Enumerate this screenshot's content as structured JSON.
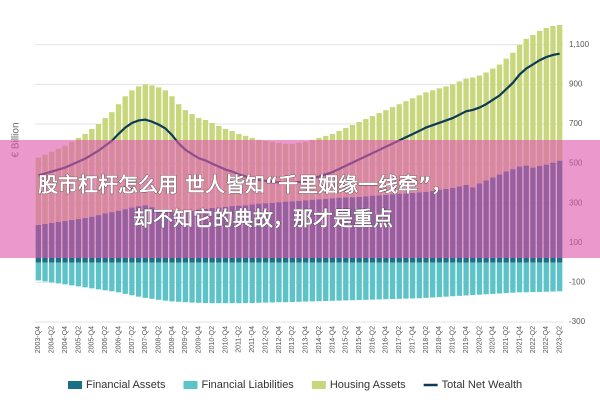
{
  "chart_data": {
    "type": "bar",
    "stacked": true,
    "y_axis_label": "€ Billion",
    "categories": [
      "2003-Q4",
      null,
      "2004-Q2",
      null,
      "2004-Q4",
      null,
      "2005-Q2",
      null,
      "2005-Q4",
      null,
      "2006-Q2",
      null,
      "2006-Q4",
      null,
      "2007-Q2",
      null,
      "2007-Q4",
      null,
      "2008-Q2",
      null,
      "2008-Q4",
      null,
      "2009-Q2",
      null,
      "2009-Q4",
      null,
      "2010-Q2",
      null,
      "2010-Q4",
      null,
      "2011-Q2",
      null,
      "2011-Q4",
      null,
      "2012-Q2",
      null,
      "2012-Q4",
      null,
      "2013-Q2",
      null,
      "2013-Q4",
      null,
      "2014-Q2",
      null,
      "2014-Q4",
      null,
      "2015-Q2",
      null,
      "2015-Q4",
      null,
      "2016-Q2",
      null,
      "2016-Q4",
      null,
      "2017-Q2",
      null,
      "2017-Q4",
      null,
      "2018-Q2",
      null,
      "2018-Q4",
      null,
      "2019-Q2",
      null,
      "2019-Q4",
      null,
      "2020-Q2",
      null,
      "2020-Q4",
      null,
      "2021-Q2",
      null,
      "2021-Q4",
      null,
      "2022-Q2",
      null,
      "2022-Q4",
      null,
      "2023-Q2"
    ],
    "series": [
      {
        "name": "Financial Assets",
        "color": "#1b6f86",
        "values": [
          190,
          195,
          200,
          205,
          210,
          215,
          220,
          225,
          232,
          240,
          248,
          255,
          262,
          270,
          278,
          285,
          290,
          280,
          270,
          262,
          255,
          250,
          255,
          262,
          268,
          272,
          276,
          278,
          282,
          286,
          288,
          290,
          294,
          298,
          300,
          302,
          305,
          308,
          310,
          312,
          315,
          318,
          320,
          322,
          325,
          328,
          330,
          330,
          332,
          335,
          338,
          340,
          342,
          345,
          348,
          350,
          352,
          355,
          358,
          362,
          368,
          372,
          378,
          385,
          392,
          380,
          400,
          415,
          430,
          445,
          460,
          472,
          485,
          490,
          480,
          488,
          495,
          505,
          515
        ]
      },
      {
        "name": "Financial Liabilities",
        "color": "#5cc3c9",
        "values": [
          -90,
          -95,
          -100,
          -105,
          -110,
          -115,
          -120,
          -125,
          -130,
          -135,
          -140,
          -145,
          -150,
          -158,
          -165,
          -172,
          -178,
          -183,
          -188,
          -192,
          -196,
          -198,
          -200,
          -202,
          -203,
          -204,
          -205,
          -205,
          -205,
          -205,
          -205,
          -204,
          -204,
          -203,
          -202,
          -201,
          -200,
          -200,
          -199,
          -198,
          -197,
          -196,
          -195,
          -194,
          -193,
          -192,
          -191,
          -190,
          -189,
          -188,
          -187,
          -186,
          -185,
          -184,
          -183,
          -182,
          -181,
          -180,
          -178,
          -176,
          -174,
          -172,
          -170,
          -168,
          -166,
          -164,
          -162,
          -160,
          -158,
          -156,
          -154,
          -152,
          -150,
          -150,
          -149,
          -148,
          -147,
          -146,
          -145
        ]
      },
      {
        "name": "Housing Assets",
        "color": "#c8d77c",
        "values": [
          340,
          350,
          360,
          370,
          380,
          395,
          410,
          425,
          443,
          460,
          482,
          505,
          538,
          570,
          592,
          605,
          610,
          615,
          615,
          608,
          585,
          550,
          515,
          488,
          462,
          448,
          429,
          412,
          393,
          379,
          362,
          350,
          336,
          322,
          315,
          308,
          300,
          292,
          290,
          293,
          295,
          302,
          310,
          318,
          325,
          337,
          350,
          365,
          378,
          390,
          402,
          415,
          428,
          440,
          452,
          465,
          478,
          490,
          502,
          508,
          512,
          518,
          522,
          530,
          538,
          555,
          545,
          545,
          550,
          555,
          570,
          588,
          615,
          640,
          670,
          682,
          690,
          690,
          685
        ]
      },
      {
        "name": "Total Net Wealth",
        "color": "#0e3a58",
        "type": "line",
        "values": [
          440,
          450,
          460,
          470,
          480,
          495,
          510,
          525,
          545,
          565,
          590,
          615,
          650,
          682,
          705,
          718,
          722,
          712,
          697,
          678,
          644,
          602,
          570,
          548,
          527,
          516,
          500,
          485,
          470,
          460,
          445,
          436,
          426,
          417,
          413,
          409,
          405,
          400,
          401,
          407,
          413,
          424,
          435,
          446,
          457,
          473,
          489,
          505,
          521,
          537,
          553,
          569,
          585,
          601,
          617,
          633,
          649,
          665,
          682,
          694,
          706,
          718,
          730,
          747,
          764,
          771,
          783,
          800,
          822,
          844,
          876,
          908,
          950,
          980,
          1001,
          1022,
          1038,
          1049,
          1055
        ]
      }
    ],
    "ylim": [
      -300,
      1200
    ],
    "yticks": [
      -300,
      -100,
      100,
      300,
      500,
      700,
      900,
      {
        "value": 1100,
        "label": "1,100"
      }
    ],
    "grid": true,
    "legend": "bottom"
  },
  "banner": {
    "lines": [
      "股市杠杆怎么用 世人皆知“千里姻缘一线牵”，",
      "却不知它的典故，那才是重点"
    ]
  }
}
